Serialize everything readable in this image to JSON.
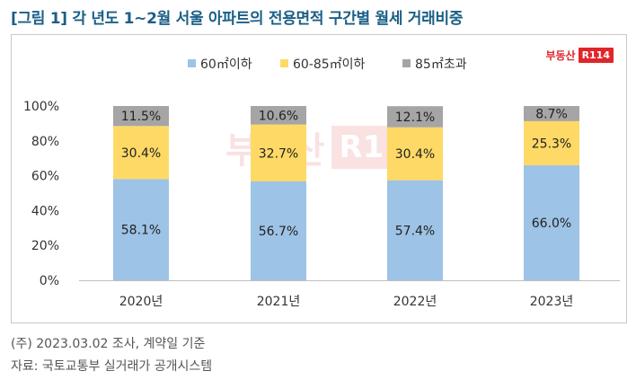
{
  "title": "[그림 1] 각 년도 1~2월 서울 아파트의 전용면적 구간별 월세 거래비중",
  "logo": {
    "text": "부동산",
    "badge": "R114"
  },
  "chart_data": {
    "type": "bar",
    "stacked": true,
    "categories": [
      "2020년",
      "2021년",
      "2022년",
      "2023년"
    ],
    "series": [
      {
        "name": "60㎡이하",
        "color": "#9dc3e6",
        "values": [
          58.1,
          56.7,
          57.4,
          66.0
        ]
      },
      {
        "name": "60-85㎡이하",
        "color": "#ffd966",
        "values": [
          30.4,
          32.7,
          30.4,
          25.3
        ]
      },
      {
        "name": "85㎡초과",
        "color": "#a5a5a5",
        "values": [
          11.5,
          10.6,
          12.1,
          8.7
        ]
      }
    ],
    "data_labels": [
      [
        "58.1%",
        "56.7%",
        "57.4%",
        "66.0%"
      ],
      [
        "30.4%",
        "32.7%",
        "30.4%",
        "25.3%"
      ],
      [
        "11.5%",
        "10.6%",
        "12.1%",
        "8.7%"
      ]
    ],
    "y_ticks": [
      "0%",
      "20%",
      "40%",
      "60%",
      "80%",
      "100%"
    ],
    "ylim": [
      0,
      100
    ],
    "legend_position": "top-center",
    "grid": false
  },
  "footnotes": {
    "note": "(주) 2023.03.02  조사, 계약일 기준",
    "source": "자료: 국토교통부 실거래가 공개시스템"
  }
}
